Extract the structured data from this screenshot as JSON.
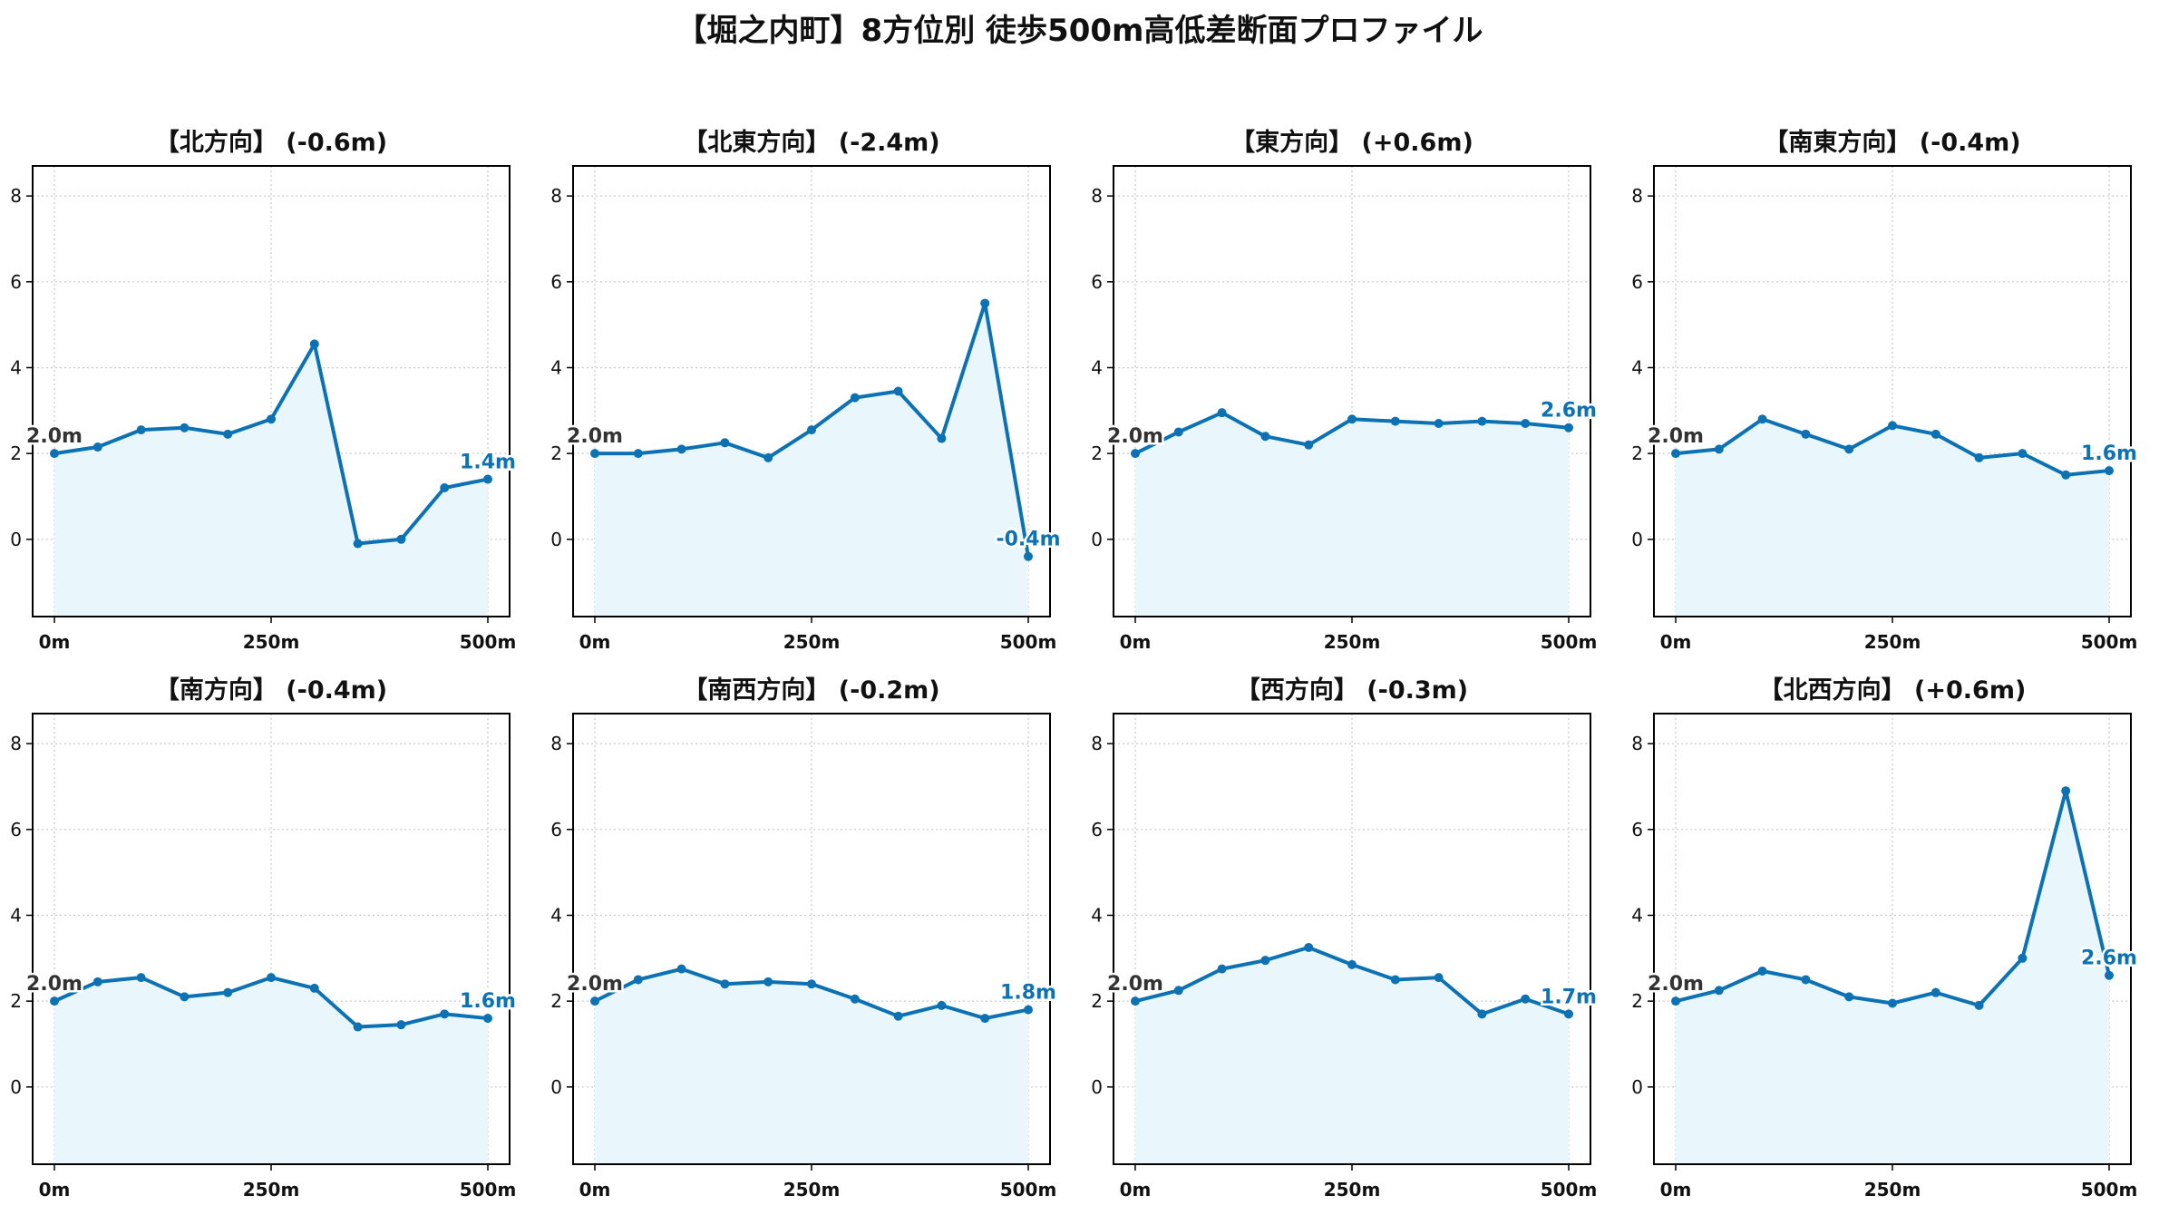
{
  "title": "【堀之内町】8方位別 徒歩500m高低差断面プロファイル",
  "colors": {
    "line": "#0c72b3",
    "fill": "#e9f6fc",
    "grid": "#c8c8c8",
    "start_label": "#333333",
    "end_label": "#0c72b3"
  },
  "chart_data": [
    {
      "type": "area",
      "title": "【北方向】 (-0.6m)",
      "x": [
        0,
        50,
        100,
        150,
        200,
        250,
        300,
        350,
        400,
        450,
        500
      ],
      "y": [
        2.0,
        2.15,
        2.55,
        2.6,
        2.45,
        2.8,
        4.55,
        -0.1,
        0.0,
        1.2,
        1.4
      ],
      "start_label": "2.0m",
      "end_label": "1.4m",
      "xticks": [
        "0m",
        "250m",
        "500m"
      ],
      "yticks": [
        0,
        2,
        4,
        6,
        8
      ],
      "ylim": [
        -1.8,
        8.7
      ],
      "grid": true
    },
    {
      "type": "area",
      "title": "【北東方向】 (-2.4m)",
      "x": [
        0,
        50,
        100,
        150,
        200,
        250,
        300,
        350,
        400,
        450,
        500
      ],
      "y": [
        2.0,
        2.0,
        2.1,
        2.25,
        1.9,
        2.55,
        3.3,
        3.45,
        2.35,
        5.5,
        -0.4
      ],
      "start_label": "2.0m",
      "end_label": "-0.4m",
      "xticks": [
        "0m",
        "250m",
        "500m"
      ],
      "yticks": [
        0,
        2,
        4,
        6,
        8
      ],
      "ylim": [
        -1.8,
        8.7
      ],
      "grid": true
    },
    {
      "type": "area",
      "title": "【東方向】 (+0.6m)",
      "x": [
        0,
        50,
        100,
        150,
        200,
        250,
        300,
        350,
        400,
        450,
        500
      ],
      "y": [
        2.0,
        2.5,
        2.95,
        2.4,
        2.2,
        2.8,
        2.75,
        2.7,
        2.75,
        2.7,
        2.6
      ],
      "start_label": "2.0m",
      "end_label": "2.6m",
      "xticks": [
        "0m",
        "250m",
        "500m"
      ],
      "yticks": [
        0,
        2,
        4,
        6,
        8
      ],
      "ylim": [
        -1.8,
        8.7
      ],
      "grid": true
    },
    {
      "type": "area",
      "title": "【南東方向】 (-0.4m)",
      "x": [
        0,
        50,
        100,
        150,
        200,
        250,
        300,
        350,
        400,
        450,
        500
      ],
      "y": [
        2.0,
        2.1,
        2.8,
        2.45,
        2.1,
        2.65,
        2.45,
        1.9,
        2.0,
        1.5,
        1.6
      ],
      "start_label": "2.0m",
      "end_label": "1.6m",
      "xticks": [
        "0m",
        "250m",
        "500m"
      ],
      "yticks": [
        0,
        2,
        4,
        6,
        8
      ],
      "ylim": [
        -1.8,
        8.7
      ],
      "grid": true
    },
    {
      "type": "area",
      "title": "【南方向】 (-0.4m)",
      "x": [
        0,
        50,
        100,
        150,
        200,
        250,
        300,
        350,
        400,
        450,
        500
      ],
      "y": [
        2.0,
        2.45,
        2.55,
        2.1,
        2.2,
        2.55,
        2.3,
        1.4,
        1.45,
        1.7,
        1.6
      ],
      "start_label": "2.0m",
      "end_label": "1.6m",
      "xticks": [
        "0m",
        "250m",
        "500m"
      ],
      "yticks": [
        0,
        2,
        4,
        6,
        8
      ],
      "ylim": [
        -1.8,
        8.7
      ],
      "grid": true
    },
    {
      "type": "area",
      "title": "【南西方向】 (-0.2m)",
      "x": [
        0,
        50,
        100,
        150,
        200,
        250,
        300,
        350,
        400,
        450,
        500
      ],
      "y": [
        2.0,
        2.5,
        2.75,
        2.4,
        2.45,
        2.4,
        2.05,
        1.65,
        1.9,
        1.6,
        1.8
      ],
      "start_label": "2.0m",
      "end_label": "1.8m",
      "xticks": [
        "0m",
        "250m",
        "500m"
      ],
      "yticks": [
        0,
        2,
        4,
        6,
        8
      ],
      "ylim": [
        -1.8,
        8.7
      ],
      "grid": true
    },
    {
      "type": "area",
      "title": "【西方向】 (-0.3m)",
      "x": [
        0,
        50,
        100,
        150,
        200,
        250,
        300,
        350,
        400,
        450,
        500
      ],
      "y": [
        2.0,
        2.25,
        2.75,
        2.95,
        3.25,
        2.85,
        2.5,
        2.55,
        1.7,
        2.05,
        1.7
      ],
      "start_label": "2.0m",
      "end_label": "1.7m",
      "xticks": [
        "0m",
        "250m",
        "500m"
      ],
      "yticks": [
        0,
        2,
        4,
        6,
        8
      ],
      "ylim": [
        -1.8,
        8.7
      ],
      "grid": true
    },
    {
      "type": "area",
      "title": "【北西方向】 (+0.6m)",
      "x": [
        0,
        50,
        100,
        150,
        200,
        250,
        300,
        350,
        400,
        450,
        500
      ],
      "y": [
        2.0,
        2.25,
        2.7,
        2.5,
        2.1,
        1.95,
        2.2,
        1.9,
        3.0,
        6.9,
        2.6
      ],
      "start_label": "2.0m",
      "end_label": "2.6m",
      "xticks": [
        "0m",
        "250m",
        "500m"
      ],
      "yticks": [
        0,
        2,
        4,
        6,
        8
      ],
      "ylim": [
        -1.8,
        8.7
      ],
      "grid": true
    }
  ]
}
